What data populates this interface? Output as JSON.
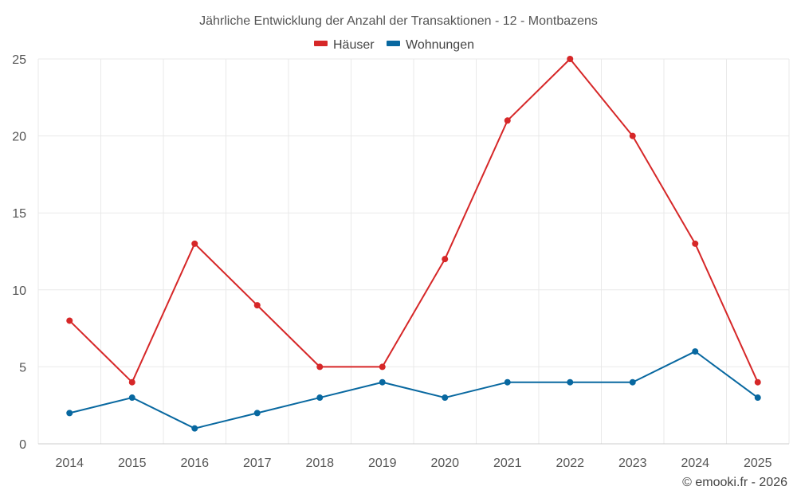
{
  "chart_data": {
    "type": "line",
    "title": "Jährliche Entwicklung der Anzahl der Transaktionen - 12 - Montbazens",
    "categories": [
      "2014",
      "2015",
      "2016",
      "2017",
      "2018",
      "2019",
      "2020",
      "2021",
      "2022",
      "2023",
      "2024",
      "2025"
    ],
    "series": [
      {
        "name": "Häuser",
        "color": "#d62728",
        "values": [
          8,
          4,
          13,
          9,
          5,
          5,
          12,
          21,
          25,
          20,
          13,
          4
        ]
      },
      {
        "name": "Wohnungen",
        "color": "#0868a0",
        "values": [
          2,
          3,
          1,
          2,
          3,
          4,
          3,
          4,
          4,
          4,
          6,
          3
        ]
      }
    ],
    "ylim": [
      0,
      25
    ],
    "yticks": [
      "0",
      "5",
      "10",
      "15",
      "20",
      "25"
    ],
    "ytick_values": [
      0,
      5,
      10,
      15,
      20,
      25
    ],
    "xlabel": "",
    "ylabel": "",
    "grid": true,
    "legend": "top-center"
  },
  "credit": "© emooki.fr - 2026"
}
